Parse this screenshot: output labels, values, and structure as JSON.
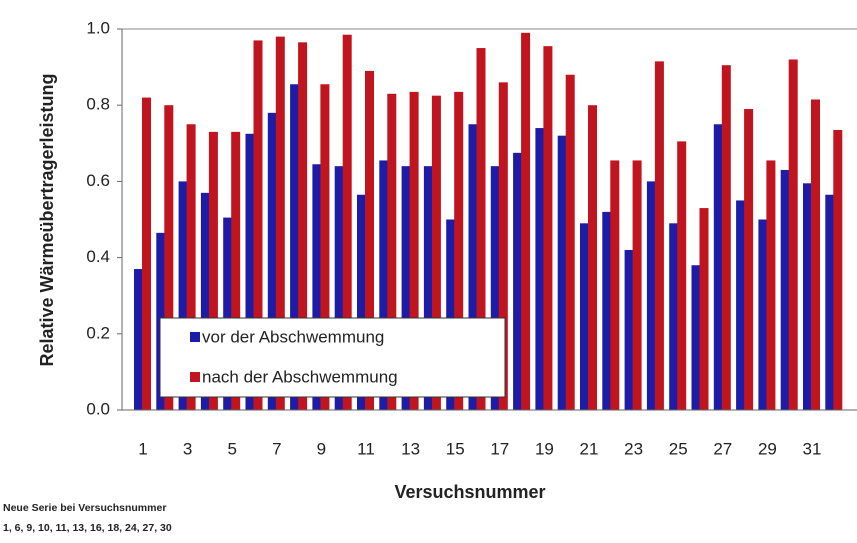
{
  "chart_data": {
    "type": "bar",
    "y_label": "Relative Wärmeübertragerleistung",
    "x_label": "Versuchsnummer",
    "footnote": [
      "Neue Serie bei Versuchsnummer",
      "1, 6, 9, 10, 11, 13, 16, 18, 24, 27, 30"
    ],
    "categories": [
      "1",
      null,
      "3",
      null,
      "5",
      null,
      "7",
      null,
      "9",
      null,
      "11",
      null,
      "13",
      null,
      "15",
      null,
      "17",
      null,
      "19",
      null,
      "21",
      null,
      "23",
      null,
      "25",
      null,
      "27",
      null,
      "29",
      null,
      "31",
      null
    ],
    "series": [
      {
        "name": "vor der Abschwemmung",
        "color": "#1c1ca6",
        "values": [
          0.37,
          0.465,
          0.6,
          0.57,
          0.505,
          0.725,
          0.78,
          0.855,
          0.645,
          0.64,
          0.565,
          0.655,
          0.64,
          0.64,
          0.5,
          0.75,
          0.64,
          0.675,
          0.74,
          0.72,
          0.49,
          0.52,
          0.42,
          0.6,
          0.49,
          0.38,
          0.75,
          0.55,
          0.5,
          0.63,
          0.595,
          0.565
        ]
      },
      {
        "name": "nach der Abschwemmung",
        "color": "#c0141e",
        "values": [
          0.82,
          0.8,
          0.75,
          0.73,
          0.73,
          0.97,
          0.98,
          0.965,
          0.855,
          0.985,
          0.89,
          0.83,
          0.835,
          0.825,
          0.835,
          0.95,
          0.86,
          0.99,
          0.955,
          0.88,
          0.8,
          0.655,
          0.655,
          0.915,
          0.705,
          0.53,
          0.905,
          0.79,
          0.655,
          0.92,
          0.815,
          0.735
        ]
      }
    ],
    "ylim": [
      0,
      1
    ],
    "yticks": [
      {
        "value": 0,
        "label": "0.0"
      },
      0.2,
      0.4,
      0.6,
      0.8,
      {
        "value": 1,
        "label": "1.0"
      }
    ],
    "legend_position": "lower left"
  }
}
